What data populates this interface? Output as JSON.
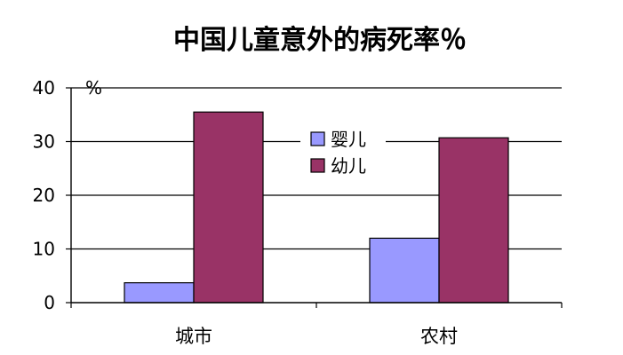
{
  "chart_data": {
    "type": "bar",
    "title": "中国儿童意外的病死率％",
    "ylabel": "%",
    "xlabel": "",
    "categories": [
      "城市",
      "农村"
    ],
    "series": [
      {
        "name": "婴儿",
        "values": [
          3.7,
          12.0
        ],
        "color": "#9999ff"
      },
      {
        "name": "幼儿",
        "values": [
          35.5,
          30.7
        ],
        "color": "#993366"
      }
    ],
    "ylim": [
      0,
      40
    ],
    "yticks": [
      "0",
      "10",
      "20",
      "30",
      "40"
    ],
    "grid": true,
    "legend": "top-center"
  }
}
